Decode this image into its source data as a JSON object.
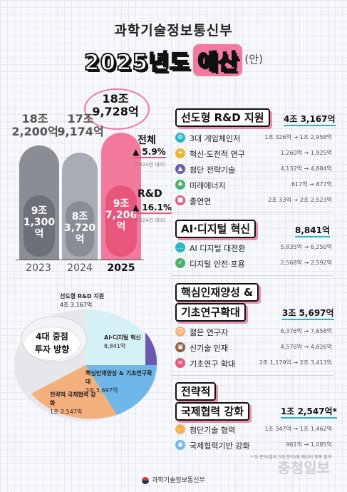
{
  "header": {
    "ministry": "과학기술정보통신부",
    "title": "2025년도",
    "title_highlight": "예산",
    "title_suffix": "(안)"
  },
  "chart_data": {
    "type": "bar",
    "categories": [
      "2023",
      "2024",
      "2025"
    ],
    "series": [
      {
        "name": "전체",
        "values": [
          182200,
          179174,
          189728
        ],
        "labels": [
          "18조 2,200억",
          "17조 9,174억",
          "18조 9,728억"
        ]
      },
      {
        "name": "R&D",
        "values": [
          91300,
          83720,
          97206
        ],
        "labels": [
          "9조 1,300억",
          "8조 3,720억",
          "9조 7,206억"
        ]
      }
    ],
    "colors": {
      "2023": "#8a8d96",
      "2024": "#a9acb4",
      "2025": "#f27a9c"
    }
  },
  "stats": {
    "total_label": "전체",
    "total_change": "5.9%",
    "total_note": "(2024년 대비)",
    "rd_label": "R&D",
    "rd_change": "16.1%",
    "rd_note": "(2024년 대비)"
  },
  "focus": {
    "line1": "4대 중점",
    "line2": "투자 방향"
  },
  "donut_segments": [
    {
      "name": "선도형 R&D 지원",
      "value": "4조 3,167억",
      "color": "#2bb5c5"
    },
    {
      "name": "AI·디지털 혁신",
      "value": "8,841억",
      "color": "#6c59b0"
    },
    {
      "name": "핵심인재양성 & 기초연구확대",
      "value": "3조 5,697억",
      "color": "#6fb7e8"
    },
    {
      "name": "전략적 국제협력 강화",
      "value": "1조 2,547억",
      "color": "#f3b07d"
    }
  ],
  "sections": [
    {
      "title": "선도형 R&D 지원",
      "total": "4조 3,167억",
      "items": [
        {
          "icon": "gear-icon",
          "name": "3대 게임체인저",
          "value": "1조 326억 → 1조 2,958억"
        },
        {
          "icon": "bulb-icon",
          "name": "혁신·도전적 연구",
          "value": "1,260억 → 1,925억"
        },
        {
          "icon": "rocket-icon",
          "name": "첨단 전략기술",
          "value": "4,132억 → 4,884억"
        },
        {
          "icon": "plant-icon",
          "name": "미래에너지",
          "value": "617억 → 877억"
        },
        {
          "icon": "building-icon",
          "name": "출연연",
          "value": "2조 33억 → 2조 2,523억"
        }
      ]
    },
    {
      "title": "AI·디지털 혁신",
      "total": "8,841억",
      "items": [
        {
          "icon": "chat-icon",
          "name": "AI 디지털 대전환",
          "value": "5,835억 → 6,250억"
        },
        {
          "icon": "shield-icon",
          "name": "디지털 안전·포용",
          "value": "2,568억 → 2,592억"
        }
      ]
    },
    {
      "title_line1": "핵심인재양성 &",
      "title_line2": "기초연구확대",
      "total": "3조 5,697억",
      "items": [
        {
          "icon": "person-icon",
          "name": "젊은 연구자",
          "value": "6,376억 → 7,658억"
        },
        {
          "icon": "briefcase-icon",
          "name": "신기술 인재",
          "value": "4,576억 → 4,626억"
        },
        {
          "icon": "document-icon",
          "name": "기초연구 확대",
          "value": "2조 1,179억 → 2조 3,413억"
        }
      ]
    },
    {
      "title_line1": "전략적",
      "title_line2": "국제협력 강화",
      "total": "1조 2,547억*",
      "items": [
        {
          "icon": "handshake-icon",
          "name": "첨단기술 협력",
          "value": "1조 347억 → 1조 1,462억"
        },
        {
          "icon": "globe-icon",
          "name": "국제협력기반 강화",
          "value": "961억 → 1,085억"
        }
      ]
    }
  ],
  "footnote": "* 타 분야(앞의 3개 분야)에 예산이 중복 집계",
  "footer": "과학기술정보통신부",
  "watermark": "충청일보"
}
